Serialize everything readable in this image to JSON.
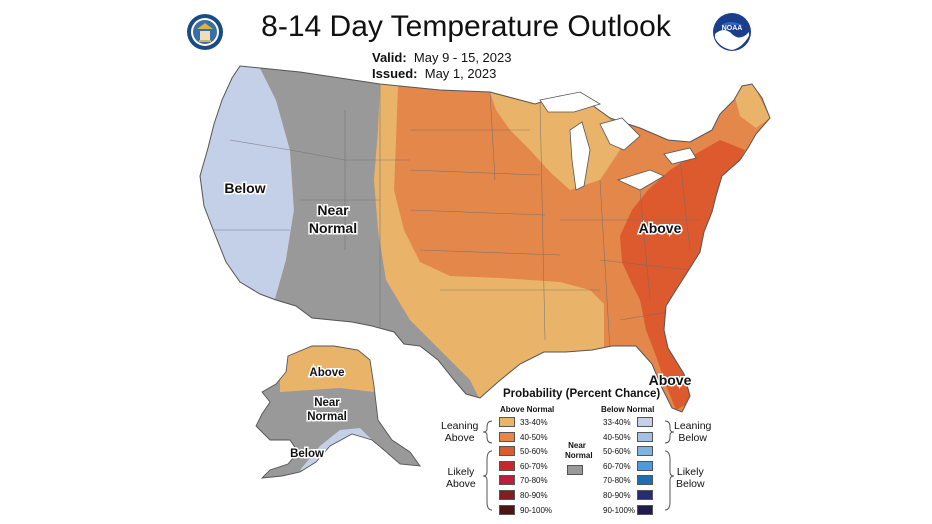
{
  "title": "8-14 Day Temperature Outlook",
  "valid_label": "Valid:",
  "valid_value": "May 9 - 15, 2023",
  "issued_label": "Issued:",
  "issued_value": "May 1, 2023",
  "logos": {
    "left": "doc-seal-icon",
    "right": "noaa-logo-icon"
  },
  "map_labels": {
    "west_below": "Below",
    "near_normal_1": "Near",
    "near_normal_2": "Normal",
    "east_above": "Above",
    "florida_above": "Above",
    "ak_above": "Above",
    "ak_near_1": "Near",
    "ak_near_2": "Normal",
    "ak_below": "Below"
  },
  "colors": {
    "below_33_40": "#c4cfe8",
    "near_normal": "#999999",
    "above_33_40": "#e9b46a",
    "above_40_50": "#e4874a",
    "above_50_60": "#dc5a2e"
  },
  "legend": {
    "title": "Probability (Percent Chance)",
    "above_header": "Above Normal",
    "below_header": "Below Normal",
    "near_label_1": "Near",
    "near_label_2": "Normal",
    "near_color": "#999999",
    "leaning_above_1": "Leaning",
    "leaning_above_2": "Above",
    "likely_above_1": "Likely",
    "likely_above_2": "Above",
    "leaning_below_1": "Leaning",
    "leaning_below_2": "Below",
    "likely_below_1": "Likely",
    "likely_below_2": "Below",
    "above": [
      {
        "range": "33-40%",
        "color": "#e9b46a"
      },
      {
        "range": "40-50%",
        "color": "#e4874a"
      },
      {
        "range": "50-60%",
        "color": "#dc5a2e"
      },
      {
        "range": "60-70%",
        "color": "#c7282a"
      },
      {
        "range": "70-80%",
        "color": "#b8203e"
      },
      {
        "range": "80-90%",
        "color": "#7e1f22"
      },
      {
        "range": "90-100%",
        "color": "#4e1414"
      }
    ],
    "below": [
      {
        "range": "33-40%",
        "color": "#c4cfe8"
      },
      {
        "range": "40-50%",
        "color": "#a7bfe3"
      },
      {
        "range": "50-60%",
        "color": "#7fb3e0"
      },
      {
        "range": "60-70%",
        "color": "#4f9bd9"
      },
      {
        "range": "70-80%",
        "color": "#1f6eb0"
      },
      {
        "range": "80-90%",
        "color": "#262d77"
      },
      {
        "range": "90-100%",
        "color": "#221b4e"
      }
    ]
  }
}
